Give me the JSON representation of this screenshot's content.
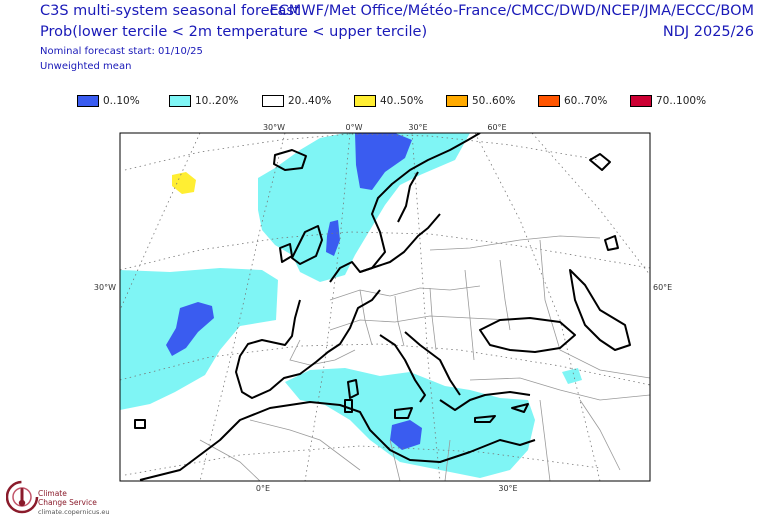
{
  "header": {
    "line1": "C3S multi-system seasonal forecast",
    "line2": "Prob(lower tercile < 2m temperature < upper tercile)",
    "line3": "Nominal forecast start: 01/10/25",
    "line4": "Unweighted mean",
    "systems": "ECMWF/Met Office/Météo-France/CMCC/DWD/NCEP/JMA/ECCC/BOM",
    "period": "NDJ 2025/26"
  },
  "legend": [
    {
      "label": "0..10%",
      "color": "#3a5cf0"
    },
    {
      "label": "10..20%",
      "color": "#7ff5f5"
    },
    {
      "label": "20..40%",
      "color": "#ffffff"
    },
    {
      "label": "40..50%",
      "color": "#ffee33"
    },
    {
      "label": "50..60%",
      "color": "#ffaa00"
    },
    {
      "label": "60..70%",
      "color": "#ff5500"
    },
    {
      "label": "70..100%",
      "color": "#cc0033"
    }
  ],
  "map": {
    "top_ticks": [
      "30°W",
      "0°W",
      "30°E",
      "60°E"
    ],
    "left_tick": "30°W",
    "right_tick": "60°E",
    "bottom_ticks": [
      "0°E",
      "30°E"
    ]
  },
  "logo": {
    "name_line1": "Climate",
    "name_line2": "Change Service",
    "url": "climate.copernicus.eu"
  }
}
